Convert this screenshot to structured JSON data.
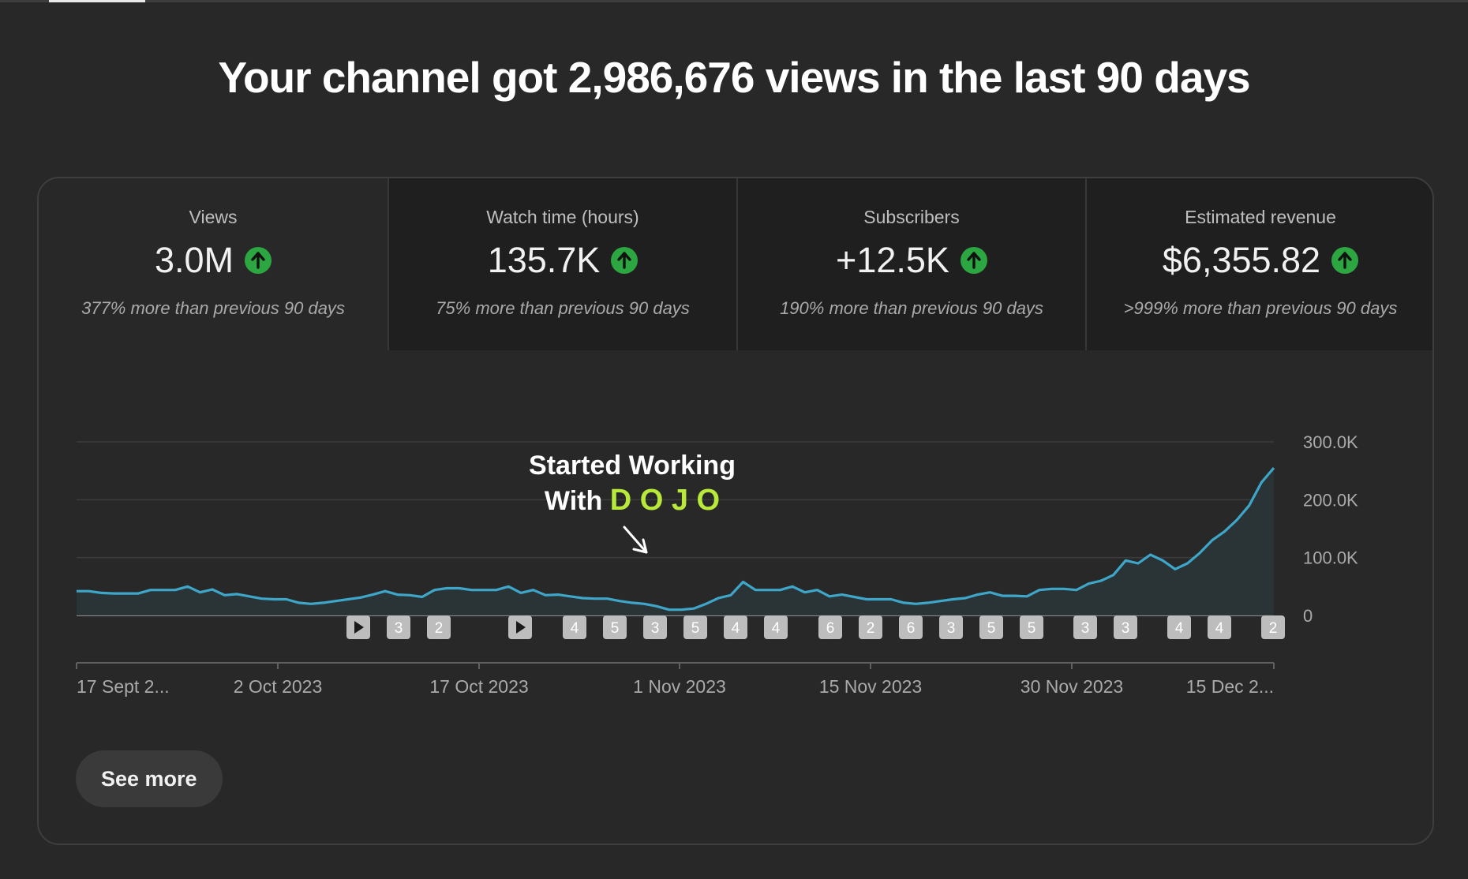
{
  "headline": "Your channel got 2,986,676 views in the last 90 days",
  "metrics": [
    {
      "label": "Views",
      "value": "3.0M",
      "sub": "377% more than previous 90 days"
    },
    {
      "label": "Watch time (hours)",
      "value": "135.7K",
      "sub": "75% more than previous 90 days"
    },
    {
      "label": "Subscribers",
      "value": "+12.5K",
      "sub": "190% more than previous 90 days"
    },
    {
      "label": "Estimated revenue",
      "value": "$6,355.82",
      "sub": ">999% more than previous 90 days"
    }
  ],
  "annotation": {
    "line1": "Started Working",
    "line2_prefix": "With",
    "brand": "D O J O"
  },
  "markers": [
    "play",
    "3",
    "2",
    "play",
    "4",
    "5",
    "3",
    "5",
    "4",
    "4",
    "6",
    "2",
    "6",
    "3",
    "5",
    "5",
    "3",
    "3",
    "4",
    "4",
    "2"
  ],
  "see_more": "See more",
  "colors": {
    "line": "#3ea6c8",
    "area": "#2a3539",
    "brand": "#b7e83a",
    "up": "#2ba640"
  },
  "chart_data": {
    "type": "area",
    "ylabels": [
      "300.0K",
      "200.0K",
      "100.0K",
      "0"
    ],
    "ylim": [
      0,
      300000
    ],
    "grid": true,
    "xlabels": [
      "17 Sept 2...",
      "2 Oct 2023",
      "17 Oct 2023",
      "1 Nov 2023",
      "15 Nov 2023",
      "30 Nov 2023",
      "15 Dec 2..."
    ],
    "series": [
      {
        "values": [
          42000,
          42000,
          39000,
          38000,
          38000,
          38000,
          44000,
          44000,
          44000,
          50000,
          40000,
          45000,
          35000,
          37000,
          33000,
          29000,
          28000,
          28000,
          22000,
          20000,
          22000,
          25000,
          28000,
          31000,
          36000,
          42000,
          36000,
          35000,
          32000,
          44000,
          47000,
          47000,
          44000,
          44000,
          44000,
          50000,
          39000,
          44000,
          35000,
          36000,
          33000,
          30000,
          29000,
          29000,
          25000,
          22000,
          20000,
          16000,
          10000,
          10000,
          12000,
          20000,
          30000,
          35000,
          58000,
          44000,
          44000,
          44000,
          50000,
          40000,
          44000,
          33000,
          36000,
          32000,
          28000,
          28000,
          28000,
          22000,
          20000,
          22000,
          25000,
          28000,
          30000,
          36000,
          40000,
          34000,
          34000,
          33000,
          44000,
          46000,
          46000,
          44000,
          55000,
          60000,
          70000,
          95000,
          90000,
          105000,
          95000,
          80000,
          90000,
          108000,
          130000,
          145000,
          165000,
          190000,
          230000,
          255000
        ]
      }
    ]
  }
}
